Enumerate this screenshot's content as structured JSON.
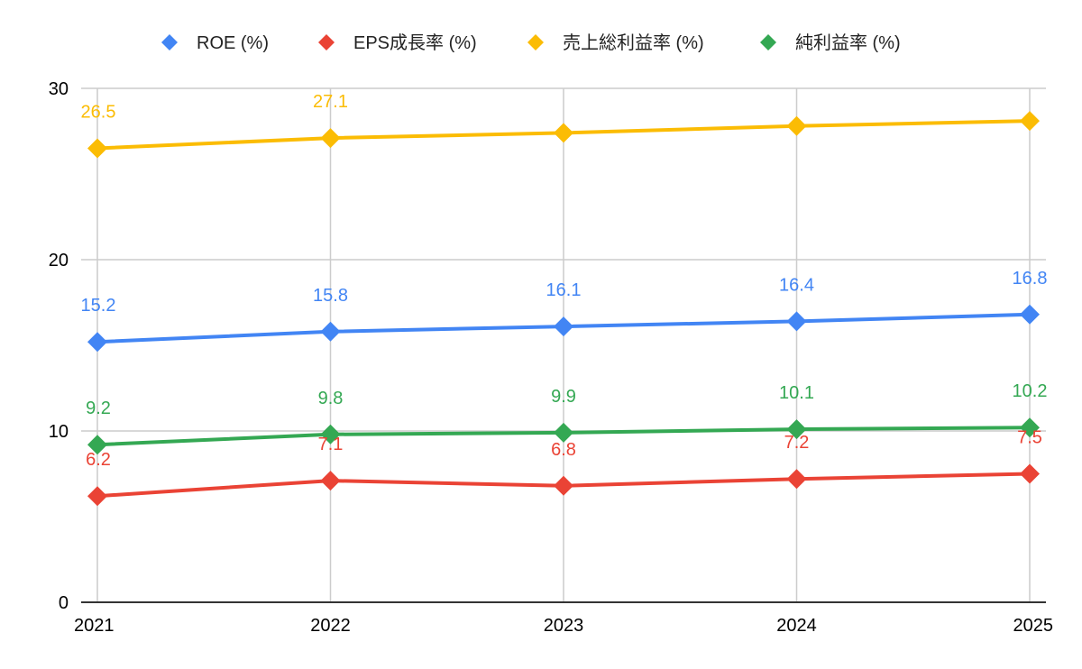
{
  "chart_data": {
    "type": "line",
    "title": "",
    "xlabel": "",
    "ylabel": "",
    "categories": [
      "2021",
      "2022",
      "2023",
      "2024",
      "2025"
    ],
    "ylim": [
      0,
      30
    ],
    "yticks": [
      0,
      10,
      20,
      30
    ],
    "grid": true,
    "legend_position": "top",
    "series": [
      {
        "name": "ROE (%)",
        "color": "#4285f4",
        "values": [
          15.2,
          15.8,
          16.1,
          16.4,
          16.8
        ],
        "labels": [
          "15.2",
          "15.8",
          "16.1",
          "16.4",
          "16.8"
        ],
        "label_pos": "above"
      },
      {
        "name": "EPS成長率 (%)",
        "color": "#ea4335",
        "values": [
          6.2,
          7.1,
          6.8,
          7.2,
          7.5
        ],
        "labels": [
          "6.2",
          "7.1",
          "6.8",
          "7.2",
          "7.5"
        ],
        "label_pos": "above"
      },
      {
        "name": "売上総利益率 (%)",
        "color": "#fbbc04",
        "values": [
          26.5,
          27.1,
          27.4,
          27.8,
          28.1
        ],
        "labels": [
          "26.5",
          "27.1",
          "",
          "",
          ""
        ],
        "label_pos": "above"
      },
      {
        "name": "純利益率 (%)",
        "color": "#34a853",
        "values": [
          9.2,
          9.8,
          9.9,
          10.1,
          10.2
        ],
        "labels": [
          "9.2",
          "9.8",
          "9.9",
          "10.1",
          "10.2"
        ],
        "label_pos": "above"
      }
    ]
  }
}
